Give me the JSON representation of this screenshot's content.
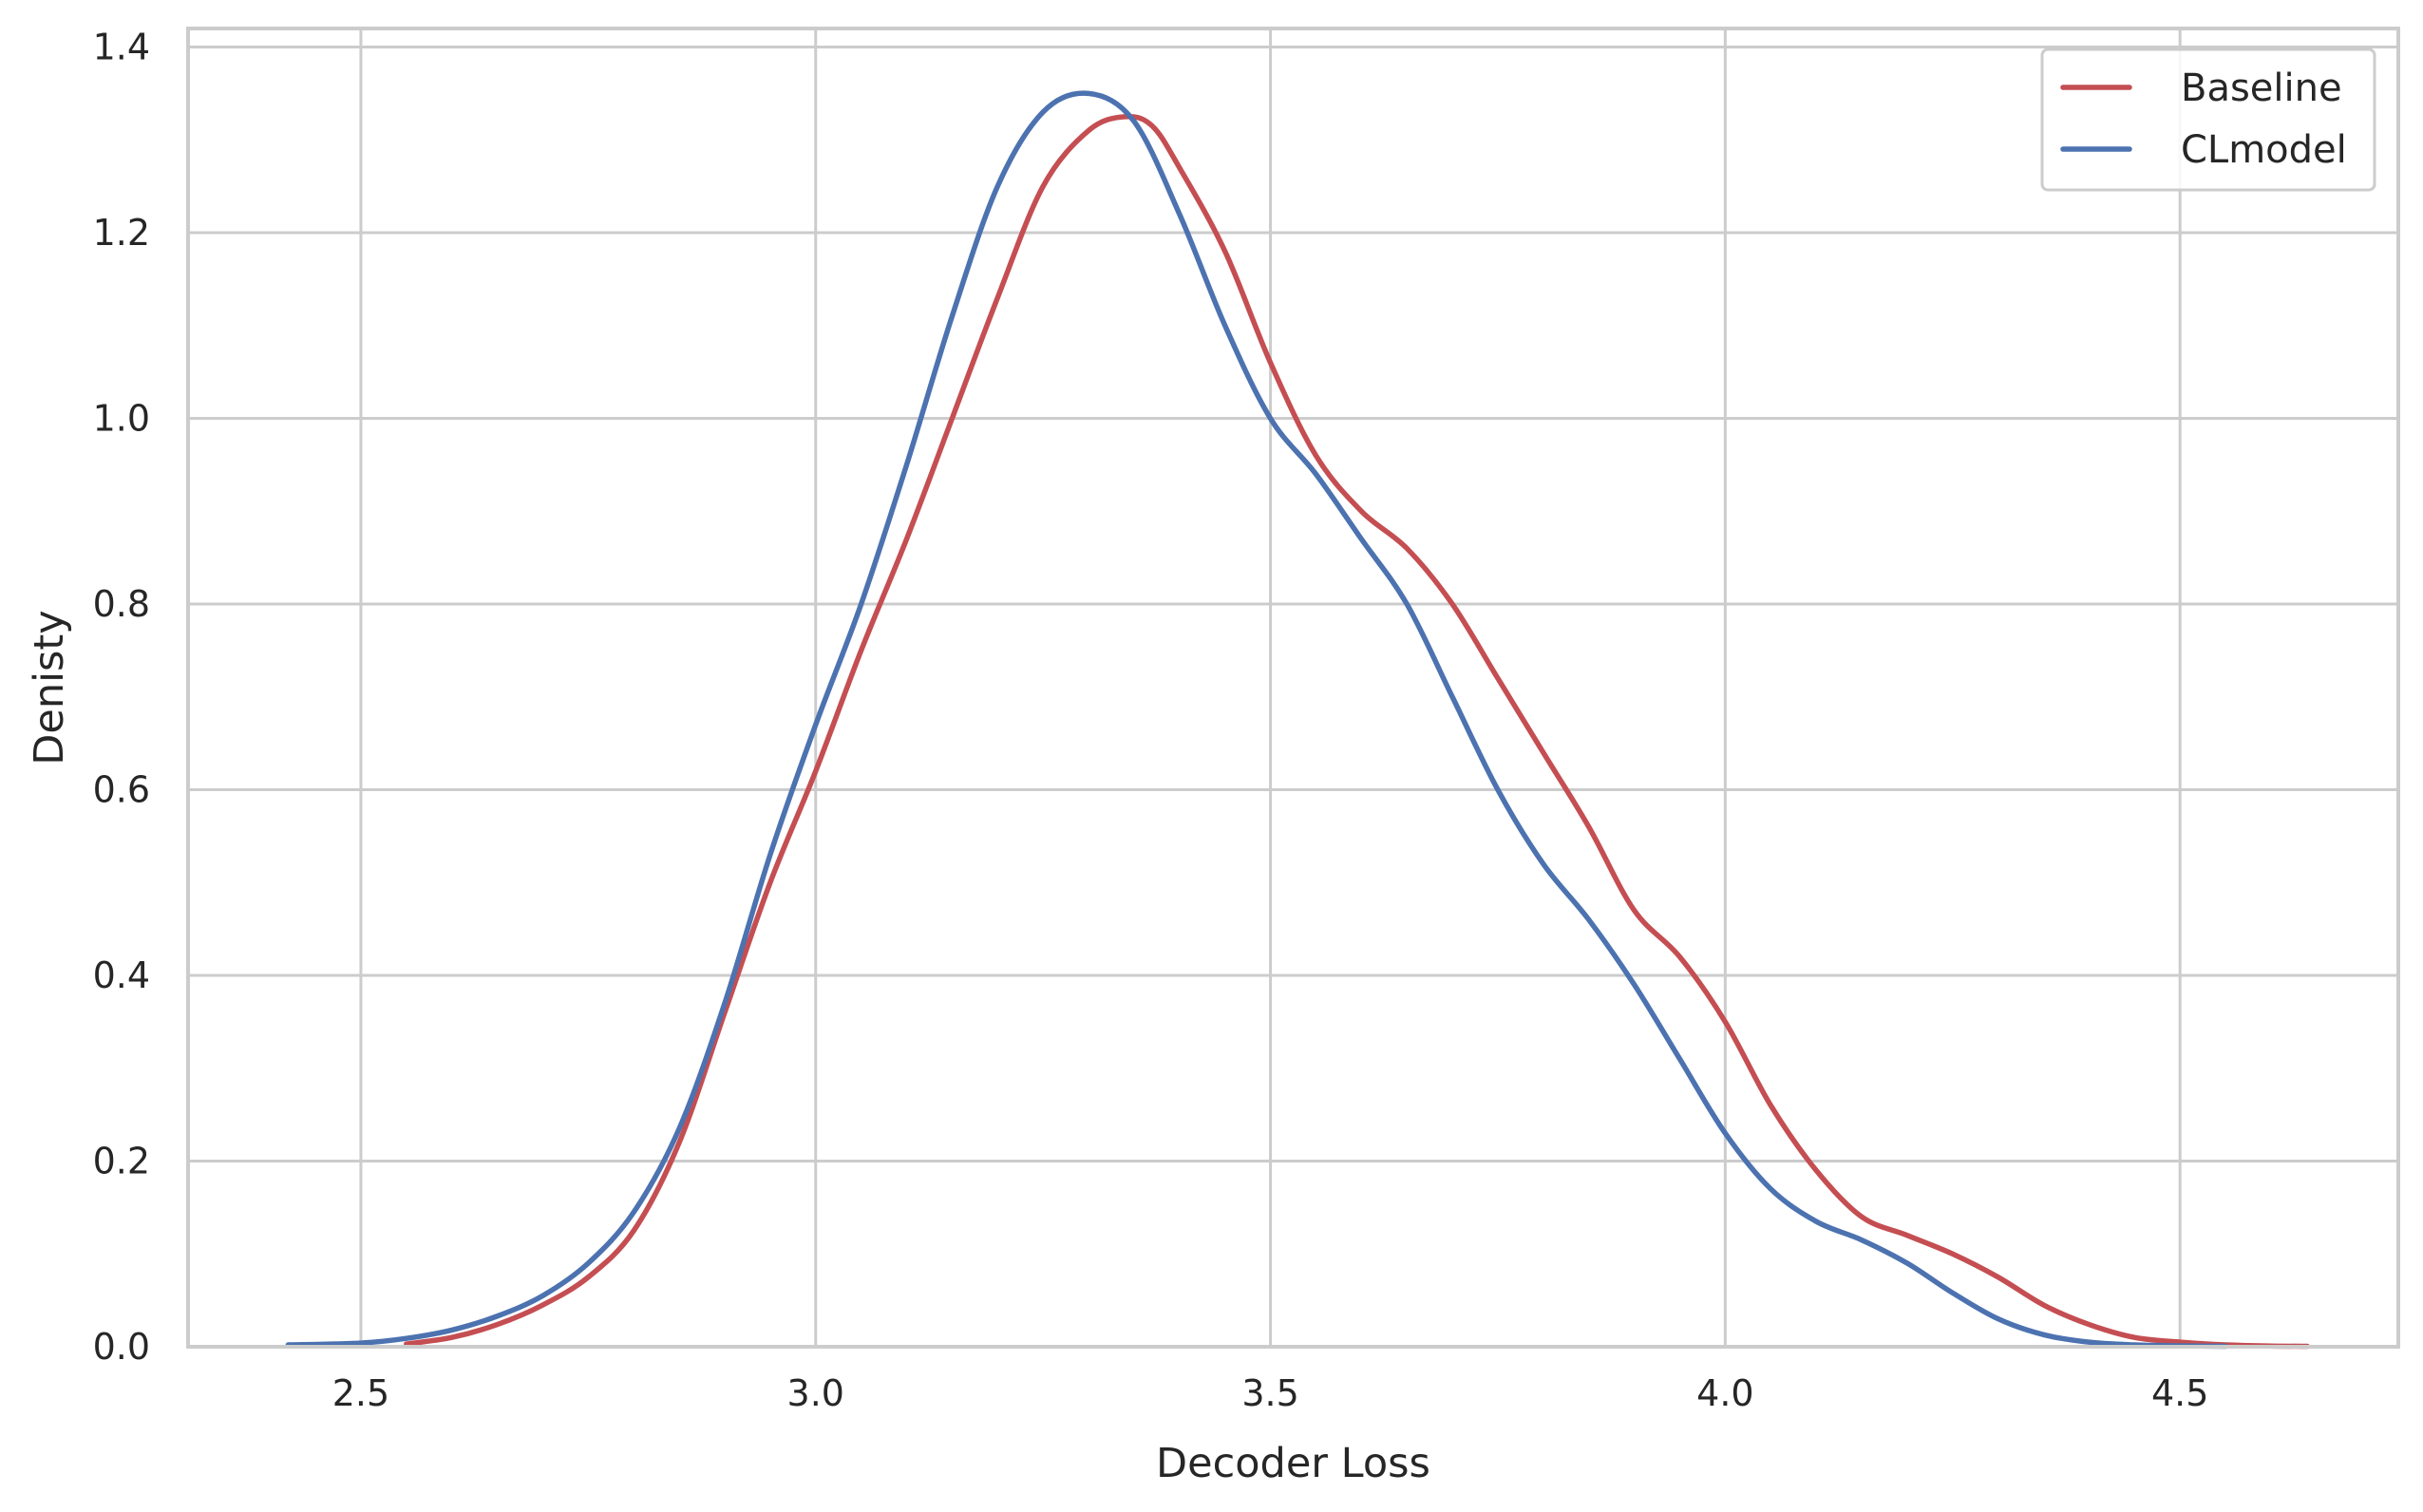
{
  "chart_data": {
    "type": "line",
    "title": "",
    "xlabel": "Decoder Loss",
    "ylabel": "Denisty",
    "xlim": [
      2.31,
      4.74
    ],
    "ylim": [
      0.0,
      1.42
    ],
    "x_ticks": [
      2.5,
      3.0,
      3.5,
      4.0,
      4.5
    ],
    "x_tick_labels": [
      "2.5",
      "3.0",
      "3.5",
      "4.0",
      "4.5"
    ],
    "y_ticks": [
      0.0,
      0.2,
      0.4,
      0.6,
      0.8,
      1.0,
      1.2,
      1.4
    ],
    "y_tick_labels": [
      "0.0",
      "0.2",
      "0.4",
      "0.6",
      "0.8",
      "1.0",
      "1.2",
      "1.4"
    ],
    "grid": true,
    "legend": "top-right",
    "series": [
      {
        "name": "Baseline",
        "color": "#c44e52",
        "x": [
          2.55,
          2.6,
          2.65,
          2.7,
          2.75,
          2.8,
          2.85,
          2.9,
          2.95,
          3.0,
          3.05,
          3.1,
          3.15,
          3.2,
          3.25,
          3.3,
          3.34,
          3.37,
          3.4,
          3.45,
          3.5,
          3.55,
          3.6,
          3.65,
          3.7,
          3.75,
          3.8,
          3.85,
          3.9,
          3.95,
          4.0,
          4.05,
          4.1,
          4.15,
          4.2,
          4.25,
          4.3,
          4.35,
          4.4,
          4.45,
          4.5,
          4.55,
          4.6,
          4.64
        ],
        "y": [
          0.003,
          0.01,
          0.024,
          0.045,
          0.075,
          0.125,
          0.22,
          0.36,
          0.5,
          0.62,
          0.75,
          0.87,
          1.0,
          1.13,
          1.25,
          1.31,
          1.325,
          1.315,
          1.27,
          1.18,
          1.06,
          0.96,
          0.9,
          0.86,
          0.8,
          0.72,
          0.64,
          0.56,
          0.47,
          0.42,
          0.35,
          0.26,
          0.19,
          0.14,
          0.12,
          0.1,
          0.075,
          0.045,
          0.024,
          0.01,
          0.005,
          0.002,
          0.0008,
          0.0005
        ]
      },
      {
        "name": "CLmodel",
        "color": "#4c72b0",
        "x": [
          2.42,
          2.5,
          2.55,
          2.6,
          2.65,
          2.7,
          2.75,
          2.8,
          2.85,
          2.9,
          2.95,
          3.0,
          3.05,
          3.1,
          3.15,
          3.2,
          3.25,
          3.3,
          3.35,
          3.4,
          3.45,
          3.5,
          3.55,
          3.6,
          3.65,
          3.7,
          3.75,
          3.8,
          3.85,
          3.9,
          3.95,
          4.0,
          4.05,
          4.1,
          4.15,
          4.2,
          4.25,
          4.3,
          4.35,
          4.4,
          4.45,
          4.5,
          4.55
        ],
        "y": [
          0.002,
          0.004,
          0.009,
          0.018,
          0.033,
          0.055,
          0.09,
          0.145,
          0.235,
          0.37,
          0.53,
          0.67,
          0.8,
          0.95,
          1.11,
          1.25,
          1.33,
          1.35,
          1.32,
          1.22,
          1.1,
          1.0,
          0.94,
          0.87,
          0.8,
          0.7,
          0.6,
          0.52,
          0.46,
          0.39,
          0.31,
          0.23,
          0.17,
          0.135,
          0.115,
          0.09,
          0.058,
          0.03,
          0.013,
          0.005,
          0.002,
          0.001,
          0.0005
        ]
      }
    ]
  }
}
